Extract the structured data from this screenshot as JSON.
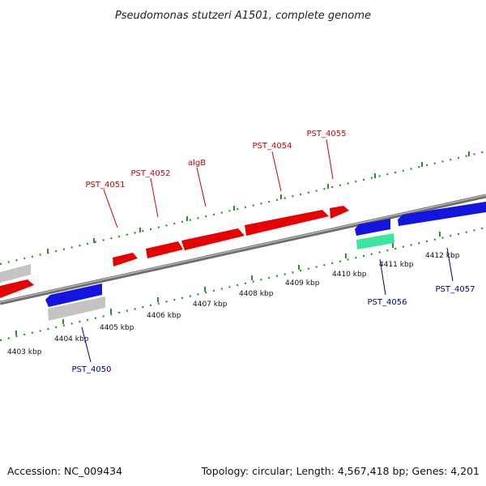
{
  "title": "Pseudomonas stutzeri A1501, complete genome",
  "footer": {
    "accession": "Accession: NC_009434",
    "summary": "Topology: circular; Length: 4,567,418 bp; Genes: 4,201"
  },
  "colors": {
    "background": "#ffffff",
    "backbone": "#8c8c8c",
    "tick_dots": "#2e8b2e",
    "forward_gene": "#e60000",
    "reverse_gene": "#1414e0",
    "pseudo_gene": "#c8c8c8",
    "rna_gene": "#3ae6a0",
    "forward_label": "#cc0000",
    "reverse_label": "#00008b"
  },
  "scale_labels": [
    "4403 kbp",
    "4404 kbp",
    "4405 kbp",
    "4406 kbp",
    "4407 kbp",
    "4408 kbp",
    "4409 kbp",
    "4410 kbp",
    "4411 kbp",
    "4412 kbp"
  ],
  "gene_labels": {
    "forward": [
      "PST_4051",
      "PST_4052",
      "algB",
      "PST_4054",
      "PST_4055"
    ],
    "reverse": [
      "PST_4050",
      "PST_4056",
      "PST_4057"
    ]
  }
}
